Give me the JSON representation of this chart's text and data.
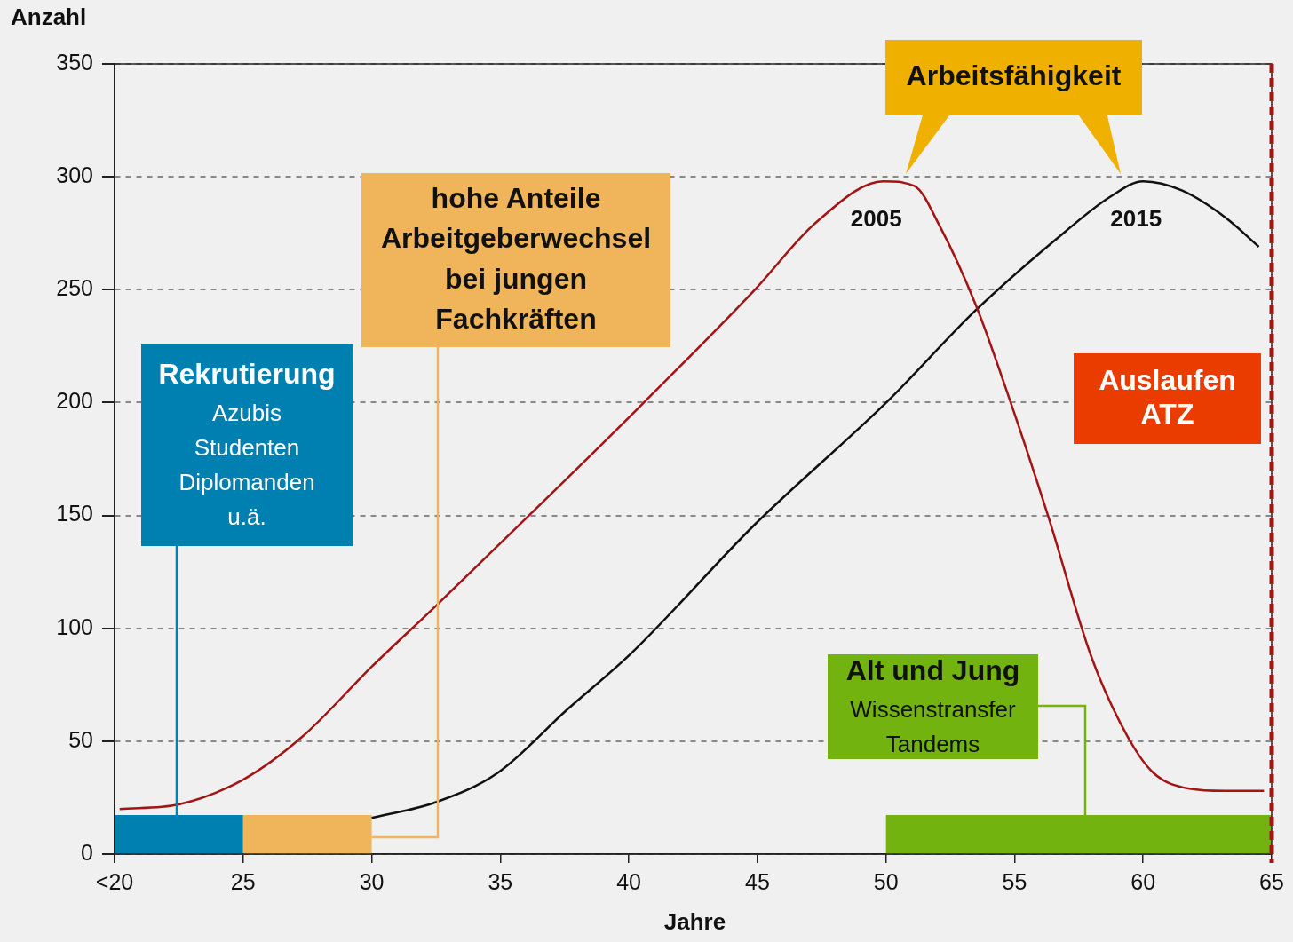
{
  "chart_data": {
    "type": "line",
    "xlabel": "Jahre",
    "ylabel": "Anzahl",
    "xlim": [
      20,
      65
    ],
    "xticks": [
      {
        "value": 20,
        "label": "<20"
      },
      25,
      30,
      35,
      40,
      45,
      50,
      55,
      60,
      65
    ],
    "ylim": [
      0,
      350
    ],
    "yticks": [
      0,
      50,
      100,
      150,
      200,
      250,
      300,
      350
    ],
    "grid": "y",
    "series": [
      {
        "name": "2005",
        "color": "#a31515",
        "x": [
          20.2,
          22.5,
          25,
          27.3,
          30,
          32.5,
          36.3,
          39.7,
          44.9,
          47.3,
          49.9,
          51.1,
          52.1,
          53.5,
          54.7,
          56.3,
          58,
          59.4,
          60.4,
          61.8,
          63.2,
          64.7
        ],
        "values": [
          20,
          22,
          33,
          52,
          83,
          110,
          152,
          190,
          250,
          280,
          298,
          296,
          278,
          243,
          205,
          150,
          87,
          52,
          36,
          29,
          28,
          28
        ]
      },
      {
        "name": "2015",
        "color": "#111111",
        "x": [
          30,
          32.5,
          34.9,
          37.6,
          40.1,
          44.9,
          50.1,
          53.5,
          57,
          58.7,
          60,
          61.5,
          63.2,
          64.5
        ],
        "values": [
          16,
          23,
          36,
          64,
          89,
          146,
          201,
          241,
          276,
          291,
          298,
          294,
          282,
          269
        ]
      }
    ],
    "bands": [
      {
        "axis": "x",
        "from": 20,
        "to": 25,
        "color": "#0080b0",
        "label": "Rekrutierung\nAzubis\nStudenten\nDiplomanden\nu.ä."
      },
      {
        "axis": "x",
        "from": 25,
        "to": 30,
        "color": "#f0b45a",
        "label": "hohe Anteile\nArbeitgeberwechsel\nbei jungen\nFachkräften"
      },
      {
        "axis": "x",
        "from": 50,
        "to": 65,
        "color": "#72b30f",
        "label": "Alt und Jung\nWissenstransfer\nTandems"
      }
    ],
    "ref_lines": [
      {
        "axis": "x",
        "value": 65,
        "label": "Auslaufen\nATZ",
        "color": "#a31515",
        "line_style": "dashed"
      }
    ],
    "annotations": [
      "Arbeitsfähigkeit"
    ],
    "legend": false
  }
}
